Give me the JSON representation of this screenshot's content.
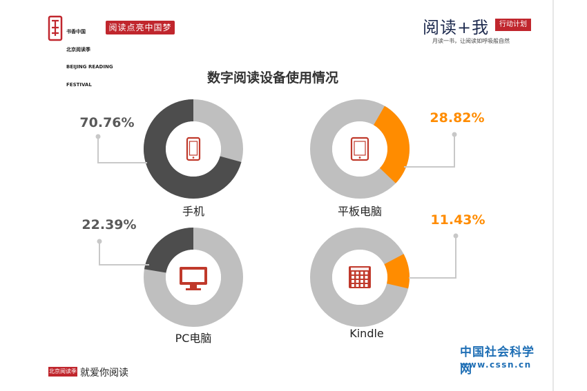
{
  "header": {
    "festival_lines": [
      "书香中国",
      "北京阅读季",
      "BEIJING READING",
      "FESTIVAL"
    ],
    "festival_slogan": "阅读点亮中国梦",
    "campaign_title": "阅读+我",
    "campaign_badge": "行动计划",
    "campaign_slogan": "月读一书，让阅读如呼吸般自然"
  },
  "footer": {
    "left_stamp": "北京阅读季",
    "left_text": "就爱你阅读",
    "right_site_name": "中国社会科学网",
    "right_url": "www.cssn.cn"
  },
  "colors": {
    "dark": "#4d4d4d",
    "grey": "#bfbfbf",
    "orange": "#ff8c00",
    "icon_red": "#c0392b",
    "text_grey": "#595959"
  },
  "chart_data": {
    "type": "pie",
    "title": "数字阅读设备使用情况",
    "series": [
      {
        "name": "手机",
        "value": 70.76,
        "label": "70.76%",
        "icon": "smartphone-icon",
        "highlight_color": "#4d4d4d",
        "label_color": "#595959"
      },
      {
        "name": "平板电脑",
        "value": 28.82,
        "label": "28.82%",
        "icon": "tablet-icon",
        "highlight_color": "#ff8c00",
        "label_color": "#ff8c00"
      },
      {
        "name": "PC电脑",
        "value": 22.39,
        "label": "22.39%",
        "icon": "monitor-icon",
        "highlight_color": "#4d4d4d",
        "label_color": "#595959"
      },
      {
        "name": "Kindle",
        "value": 11.43,
        "label": "11.43%",
        "icon": "kindle-icon",
        "highlight_color": "#ff8c00",
        "label_color": "#ff8c00"
      }
    ],
    "remainder_color": "#bfbfbf"
  }
}
